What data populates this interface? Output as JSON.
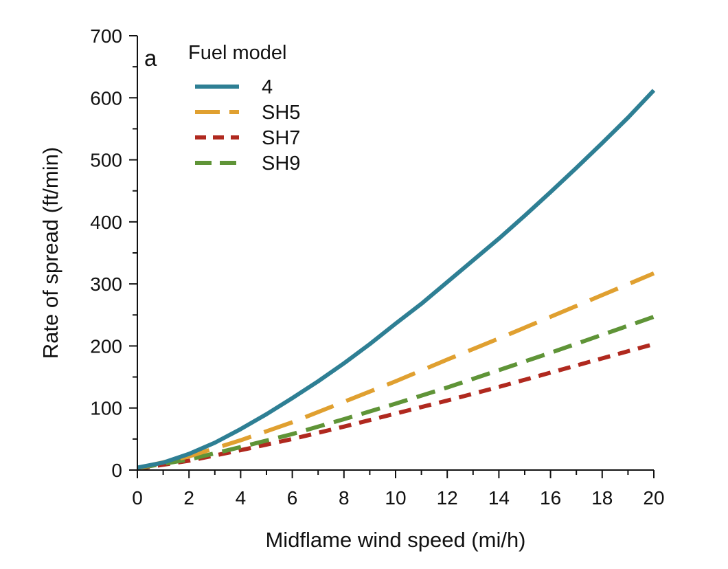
{
  "chart_data": {
    "type": "line",
    "panel_label": "a",
    "xlabel": "Midflame wind speed (mi/h)",
    "ylabel": "Rate of spread (ft/min)",
    "xlim": [
      0,
      20
    ],
    "ylim": [
      0,
      700
    ],
    "xticks": [
      0,
      2,
      4,
      6,
      8,
      10,
      12,
      14,
      16,
      18,
      20
    ],
    "yticks": [
      0,
      100,
      200,
      300,
      400,
      500,
      600,
      700
    ],
    "grid": false,
    "legend_title": "Fuel model",
    "legend_position": "top-left",
    "series": [
      {
        "name": "4",
        "color": "#2e7f94",
        "dash": "solid",
        "x": [
          0,
          1,
          2,
          3,
          4,
          5,
          6,
          7,
          8,
          9,
          10,
          11,
          12,
          13,
          14,
          15,
          16,
          17,
          18,
          19,
          20
        ],
        "y": [
          4,
          12,
          26,
          44,
          66,
          90,
          116,
          143,
          172,
          203,
          236,
          268,
          303,
          338,
          373,
          410,
          448,
          487,
          527,
          568,
          612
        ]
      },
      {
        "name": "SH5",
        "color": "#e0a030",
        "dash": "long-dash",
        "x": [
          0,
          2,
          4,
          6,
          8,
          10,
          12,
          14,
          16,
          18,
          20
        ],
        "y": [
          3,
          22,
          48,
          77,
          110,
          143,
          178,
          212,
          247,
          282,
          317
        ]
      },
      {
        "name": "SH7",
        "color": "#b0291f",
        "dash": "short-dash",
        "x": [
          0,
          2,
          4,
          6,
          8,
          10,
          12,
          14,
          16,
          18,
          20
        ],
        "y": [
          2,
          15,
          32,
          50,
          70,
          91,
          112,
          134,
          157,
          180,
          203
        ]
      },
      {
        "name": "SH9",
        "color": "#5f9437",
        "dash": "medium-dash",
        "x": [
          0,
          2,
          4,
          6,
          8,
          10,
          12,
          14,
          16,
          18,
          20
        ],
        "y": [
          3,
          17,
          37,
          58,
          82,
          107,
          133,
          161,
          189,
          218,
          247
        ]
      }
    ]
  }
}
